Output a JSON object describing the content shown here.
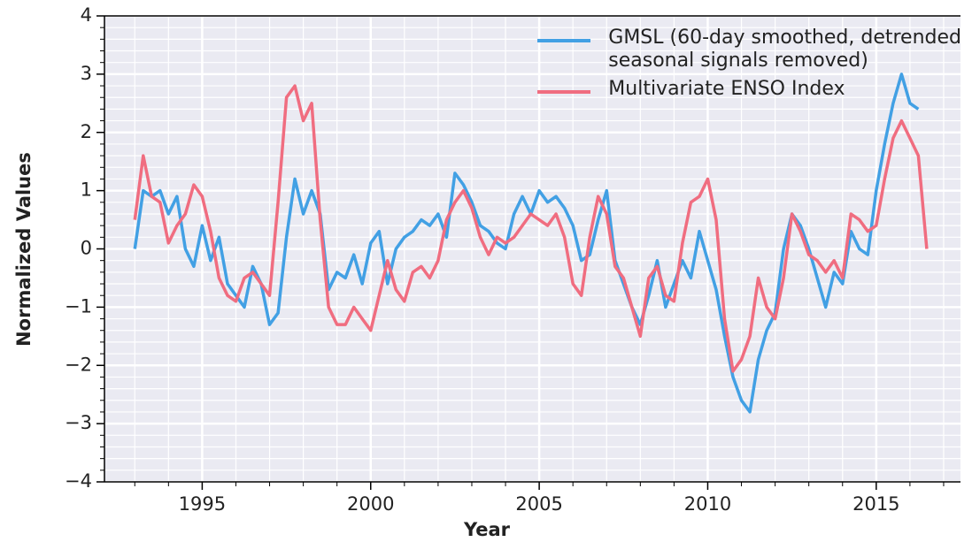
{
  "chart_data": {
    "type": "line",
    "xlabel": "Year",
    "ylabel": "Normalized Values",
    "xlim": [
      1992.1,
      2017.5
    ],
    "ylim": [
      -4,
      4
    ],
    "xticks": [
      1995,
      2000,
      2005,
      2010,
      2015
    ],
    "xminorticks": [
      1993,
      1994,
      1996,
      1997,
      1998,
      1999,
      2001,
      2002,
      2003,
      2004,
      2006,
      2007,
      2008,
      2009,
      2011,
      2012,
      2013,
      2014,
      2016,
      2017
    ],
    "yticks": [
      {
        "value": -4,
        "label": "−4"
      },
      {
        "value": -3,
        "label": "−3"
      },
      {
        "value": -2,
        "label": "−2"
      },
      {
        "value": -1,
        "label": "−1"
      },
      0,
      1,
      2,
      3,
      4
    ],
    "yminorticks": [
      -3.8,
      -3.6,
      -3.4,
      -3.2,
      -2.8,
      -2.6,
      -2.4,
      -2.2,
      -1.8,
      -1.6,
      -1.4,
      -1.2,
      -0.8,
      -0.6,
      -0.4,
      -0.2,
      0.2,
      0.4,
      0.6,
      0.8,
      1.2,
      1.4,
      1.6,
      1.8,
      2.2,
      2.4,
      2.6,
      2.8,
      3.2,
      3.4,
      3.6,
      3.8
    ],
    "grid": true,
    "legend": "upper right",
    "x": [
      1993.0,
      1993.25,
      1993.5,
      1993.75,
      1994.0,
      1994.25,
      1994.5,
      1994.75,
      1995.0,
      1995.25,
      1995.5,
      1995.75,
      1996.0,
      1996.25,
      1996.5,
      1996.75,
      1997.0,
      1997.25,
      1997.5,
      1997.75,
      1998.0,
      1998.25,
      1998.5,
      1998.75,
      1999.0,
      1999.25,
      1999.5,
      1999.75,
      2000.0,
      2000.25,
      2000.5,
      2000.75,
      2001.0,
      2001.25,
      2001.5,
      2001.75,
      2002.0,
      2002.25,
      2002.5,
      2002.75,
      2003.0,
      2003.25,
      2003.5,
      2003.75,
      2004.0,
      2004.25,
      2004.5,
      2004.75,
      2005.0,
      2005.25,
      2005.5,
      2005.75,
      2006.0,
      2006.25,
      2006.5,
      2006.75,
      2007.0,
      2007.25,
      2007.5,
      2007.75,
      2008.0,
      2008.25,
      2008.5,
      2008.75,
      2009.0,
      2009.25,
      2009.5,
      2009.75,
      2010.0,
      2010.25,
      2010.5,
      2010.75,
      2011.0,
      2011.25,
      2011.5,
      2011.75,
      2012.0,
      2012.25,
      2012.5,
      2012.75,
      2013.0,
      2013.25,
      2013.5,
      2013.75,
      2014.0,
      2014.25,
      2014.5,
      2014.75,
      2015.0,
      2015.25,
      2015.5,
      2015.75,
      2016.0,
      2016.25,
      2016.5
    ],
    "series": [
      {
        "name": "GMSL (60-day smoothed, detrended\nseasonal signals removed)",
        "color": "#42a0e4",
        "values": [
          0.0,
          1.0,
          0.9,
          1.0,
          0.6,
          0.9,
          0.0,
          -0.3,
          0.4,
          -0.2,
          0.2,
          -0.6,
          -0.8,
          -1.0,
          -0.3,
          -0.6,
          -1.3,
          -1.1,
          0.2,
          1.2,
          0.6,
          1.0,
          0.6,
          -0.7,
          -0.4,
          -0.5,
          -0.1,
          -0.6,
          0.1,
          0.3,
          -0.6,
          0.0,
          0.2,
          0.3,
          0.5,
          0.4,
          0.6,
          0.2,
          1.3,
          1.1,
          0.8,
          0.4,
          0.3,
          0.1,
          0.0,
          0.6,
          0.9,
          0.6,
          1.0,
          0.8,
          0.9,
          0.7,
          0.4,
          -0.2,
          -0.1,
          0.5,
          1.0,
          -0.2,
          -0.6,
          -1.0,
          -1.3,
          -0.8,
          -0.2,
          -1.0,
          -0.6,
          -0.2,
          -0.5,
          0.3,
          -0.2,
          -0.7,
          -1.5,
          -2.2,
          -2.6,
          -2.8,
          -1.9,
          -1.4,
          -1.1,
          0.0,
          0.6,
          0.4,
          0.0,
          -0.5,
          -1.0,
          -0.4,
          -0.6,
          0.3,
          0.0,
          -0.1,
          1.0,
          1.8,
          2.5,
          3.0,
          2.5,
          2.4,
          null
        ]
      },
      {
        "name": "Multivariate ENSO Index",
        "color": "#f06d80",
        "values": [
          0.5,
          1.6,
          0.9,
          0.8,
          0.1,
          0.4,
          0.6,
          1.1,
          0.9,
          0.3,
          -0.5,
          -0.8,
          -0.9,
          -0.5,
          -0.4,
          -0.6,
          -0.8,
          0.8,
          2.6,
          2.8,
          2.2,
          2.5,
          0.5,
          -1.0,
          -1.3,
          -1.3,
          -1.0,
          -1.2,
          -1.4,
          -0.8,
          -0.2,
          -0.7,
          -0.9,
          -0.4,
          -0.3,
          -0.5,
          -0.2,
          0.5,
          0.8,
          1.0,
          0.7,
          0.2,
          -0.1,
          0.2,
          0.1,
          0.2,
          0.4,
          0.6,
          0.5,
          0.4,
          0.6,
          0.2,
          -0.6,
          -0.8,
          0.2,
          0.9,
          0.6,
          -0.3,
          -0.5,
          -1.0,
          -1.5,
          -0.5,
          -0.3,
          -0.8,
          -0.9,
          0.1,
          0.8,
          0.9,
          1.2,
          0.5,
          -1.2,
          -2.1,
          -1.9,
          -1.5,
          -0.5,
          -1.0,
          -1.2,
          -0.5,
          0.6,
          0.3,
          -0.1,
          -0.2,
          -0.4,
          -0.2,
          -0.5,
          0.6,
          0.5,
          0.3,
          0.4,
          1.2,
          1.9,
          2.2,
          1.9,
          1.6,
          0.0
        ]
      }
    ]
  }
}
